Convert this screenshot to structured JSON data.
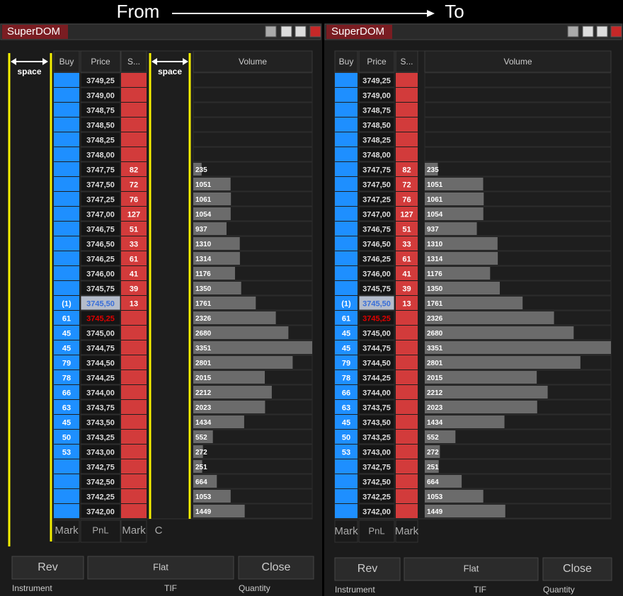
{
  "header": {
    "from": "From",
    "to": "To"
  },
  "panels": [
    {
      "title": "SuperDOM",
      "columns": [
        "Buy",
        "Price",
        "S...",
        "Volume"
      ],
      "space_labels": [
        "space",
        "space"
      ],
      "footer": [
        "Mark",
        "PnL",
        "Mark",
        "C"
      ],
      "buttons": [
        "Rev",
        "Flat",
        "Close"
      ],
      "labels": [
        "Instrument",
        "TIF",
        "Quantity"
      ]
    },
    {
      "title": "SuperDOM",
      "columns": [
        "Buy",
        "Price",
        "S...",
        "Volume"
      ],
      "footer": [
        "Mark",
        "PnL",
        "Mark"
      ],
      "buttons": [
        "Rev",
        "Flat",
        "Close"
      ],
      "labels": [
        "Instrument",
        "TIF",
        "Quantity"
      ]
    }
  ],
  "rows": [
    {
      "price": "3749,25"
    },
    {
      "price": "3749,00"
    },
    {
      "price": "3748,75"
    },
    {
      "price": "3748,50"
    },
    {
      "price": "3748,25"
    },
    {
      "price": "3748,00"
    },
    {
      "price": "3747,75",
      "sell": 82,
      "volume": 235
    },
    {
      "price": "3747,50",
      "sell": 72,
      "volume": 1051
    },
    {
      "price": "3747,25",
      "sell": 76,
      "volume": 1061
    },
    {
      "price": "3747,00",
      "sell": 127,
      "volume": 1054
    },
    {
      "price": "3746,75",
      "sell": 51,
      "volume": 937
    },
    {
      "price": "3746,50",
      "sell": 33,
      "volume": 1310
    },
    {
      "price": "3746,25",
      "sell": 61,
      "volume": 1314
    },
    {
      "price": "3746,00",
      "sell": 41,
      "volume": 1176
    },
    {
      "price": "3745,75",
      "sell": 39,
      "volume": 1350
    },
    {
      "price": "3745,50",
      "buy": "(1)",
      "sell": 13,
      "volume": 1761,
      "price_color": "#3a6fd8",
      "price_bg": "#b4bccb"
    },
    {
      "price": "3745,25",
      "buy": 61,
      "volume": 2326,
      "price_color": "#e00000"
    },
    {
      "price": "3745,00",
      "buy": 45,
      "volume": 2680
    },
    {
      "price": "3744,75",
      "buy": 45,
      "volume": 3351
    },
    {
      "price": "3744,50",
      "buy": 79,
      "volume": 2801
    },
    {
      "price": "3744,25",
      "buy": 78,
      "volume": 2015
    },
    {
      "price": "3744,00",
      "buy": 66,
      "volume": 2212
    },
    {
      "price": "3743,75",
      "buy": 63,
      "volume": 2023
    },
    {
      "price": "3743,50",
      "buy": 45,
      "volume": 1434
    },
    {
      "price": "3743,25",
      "buy": 50,
      "volume": 552
    },
    {
      "price": "3743,00",
      "buy": 53,
      "volume": 272
    },
    {
      "price": "3742,75",
      "volume": 251
    },
    {
      "price": "3742,50",
      "volume": 664
    },
    {
      "price": "3742,25",
      "volume": 1053
    },
    {
      "price": "3742,00",
      "volume": 1449
    }
  ]
}
